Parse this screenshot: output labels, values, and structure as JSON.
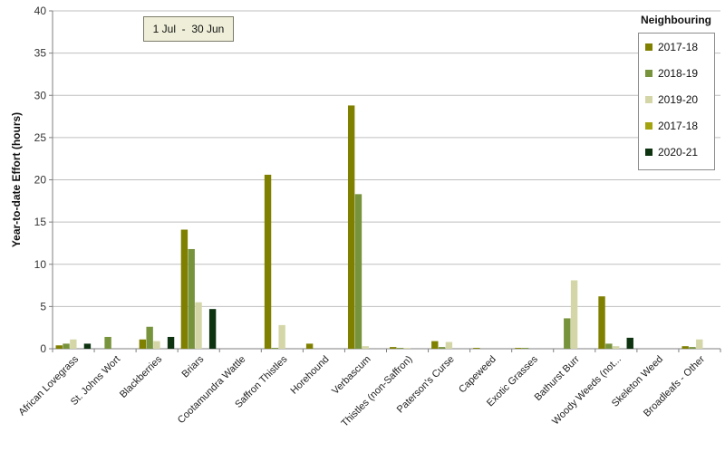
{
  "date_range": "1 Jul  -  30 Jun",
  "legend_title": "Neighbouring",
  "chart_data": {
    "type": "bar",
    "ylabel": "Year-to-date Effort  (hours)",
    "xlabel": "",
    "ylim": [
      0,
      40
    ],
    "yticks": [
      0,
      5,
      10,
      15,
      20,
      25,
      30,
      35,
      40
    ],
    "grid": true,
    "legend_position": "right",
    "categories": [
      "African Lovegrass",
      "St. Johns Wort",
      "Blackberries",
      "Briars",
      "Cootamundra Wattle",
      "Saffron Thistles",
      "Horehound",
      "Verbascum",
      "Thistles (non-Saffron)",
      "Paterson's Curse",
      "Capeweed",
      "Exotic Grasses",
      "Bathurst Burr",
      "Woody Weeds (not...",
      "Skeleton Weed",
      "Broadleafs - Other"
    ],
    "series": [
      {
        "name": "2017-18",
        "color": "#7f7f00",
        "values": [
          0.4,
          0,
          1.1,
          14.1,
          0,
          20.6,
          0.6,
          28.8,
          0.2,
          0.9,
          0.1,
          0.1,
          0,
          6.2,
          0,
          0.3
        ]
      },
      {
        "name": "2018-19",
        "color": "#77933c",
        "values": [
          0.6,
          1.4,
          2.6,
          11.8,
          0,
          0.1,
          0,
          18.3,
          0.1,
          0.2,
          0,
          0.1,
          3.6,
          0.6,
          0,
          0.2
        ]
      },
      {
        "name": "2019-20",
        "color": "#d4d6a8",
        "values": [
          1.1,
          0,
          0.9,
          5.5,
          0,
          2.8,
          0,
          0.3,
          0.1,
          0.8,
          0,
          0,
          8.1,
          0.3,
          0,
          1.1
        ]
      },
      {
        "name": "2017-18",
        "color": "#a3a30f",
        "values": [
          0,
          0,
          0,
          0,
          0,
          0,
          0,
          0,
          0,
          0,
          0,
          0,
          0,
          0,
          0,
          0
        ]
      },
      {
        "name": "2020-21",
        "color": "#0d3311",
        "values": [
          0.6,
          0,
          1.4,
          4.7,
          0,
          0,
          0,
          0,
          0,
          0,
          0,
          0,
          0,
          1.3,
          0,
          0
        ]
      }
    ]
  }
}
